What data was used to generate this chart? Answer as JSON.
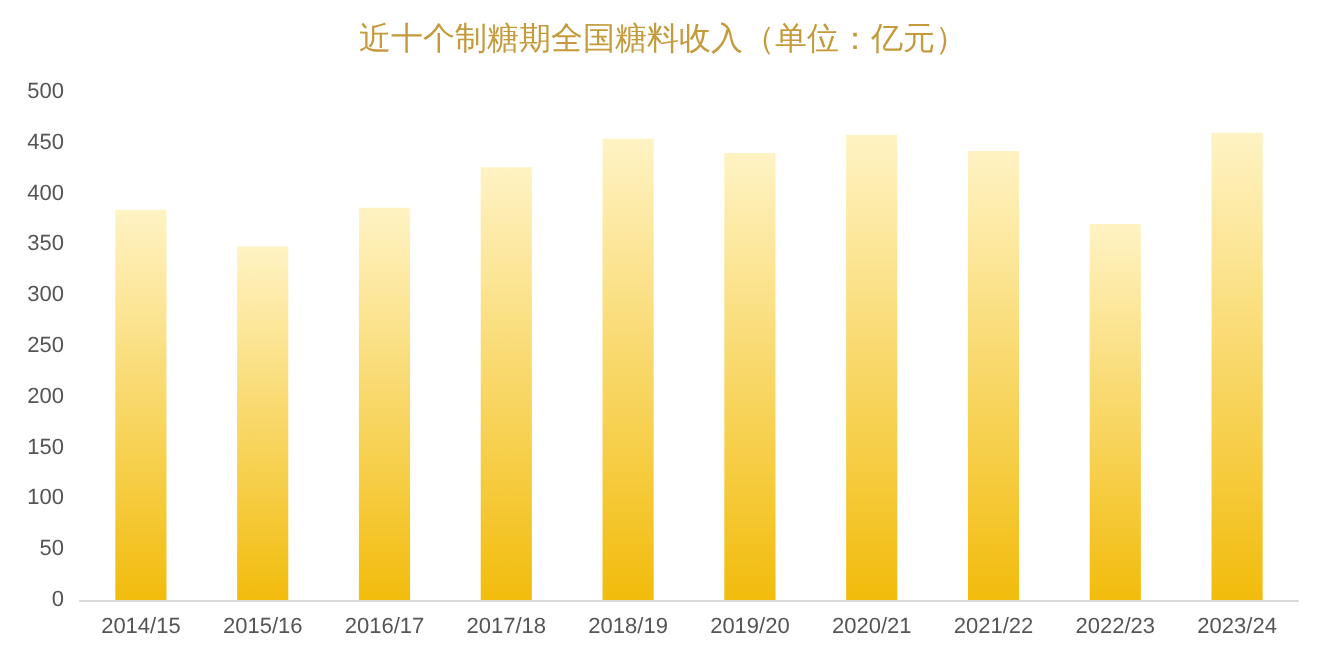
{
  "chart_data": {
    "type": "bar",
    "title": "近十个制糖期全国糖料收入（单位：亿元）",
    "categories": [
      "2014/15",
      "2015/16",
      "2016/17",
      "2017/18",
      "2018/19",
      "2019/20",
      "2020/21",
      "2021/22",
      "2022/23",
      "2023/24"
    ],
    "values": [
      384,
      348,
      386,
      426,
      454,
      440,
      458,
      442,
      370,
      460
    ],
    "color": "#f2bc0c",
    "ylim": [
      0,
      500
    ],
    "yticks": [
      0,
      50,
      100,
      150,
      200,
      250,
      300,
      350,
      400,
      450,
      500
    ],
    "grid": false
  }
}
